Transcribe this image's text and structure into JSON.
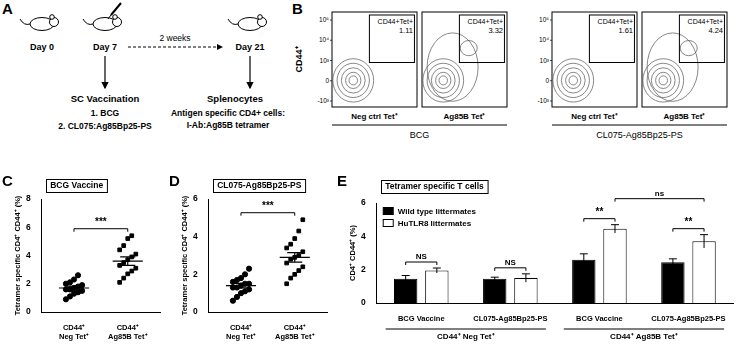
{
  "panel_a": {
    "label": "A",
    "days": [
      "Day 0",
      "Day 7",
      "Day 21"
    ],
    "interval": "2 weeks",
    "vaccination": {
      "title": "SC Vaccination",
      "items": [
        "1. BCG",
        "2. CL075:Ag85Bp25-PS"
      ]
    },
    "readout": {
      "title": "Splenocytes",
      "lines": [
        "Antigen specific CD4+ cells:",
        "I-Ab:Ag85B tetramer"
      ]
    }
  },
  "panel_b": {
    "label": "B",
    "y_label": "CD44⁺",
    "y_tick_labels": [
      "10⁵",
      "10⁴",
      "10³",
      "0",
      "-10³"
    ],
    "gate_label": "CD44+Tet+",
    "groups": [
      {
        "name": "BCG",
        "plots": [
          {
            "x_label": "Neg ctrl Tet⁺",
            "gate_value": 1.11
          },
          {
            "x_label": "Ag85B Tet⁺",
            "gate_value": 3.32
          }
        ]
      },
      {
        "name": "CL075-Ag85Bp25-PS",
        "plots": [
          {
            "x_label": "Neg ctrl Tet⁺",
            "gate_value": 1.61
          },
          {
            "x_label": "Ag85B Tet⁺",
            "gate_value": 4.24
          }
        ]
      }
    ]
  },
  "chart_data": [
    {
      "panel": "C",
      "type": "scatter",
      "title": "BCG Vaccine",
      "categories": [
        "CD44⁺\nNeg Tet⁺",
        "CD44⁺\nAg85B Tet⁺"
      ],
      "y_label": "Tetramer specific CD4⁺ CD44⁺ (%)",
      "ylim": [
        0,
        8
      ],
      "yticks": [
        0,
        2,
        4,
        6,
        8
      ],
      "grid": false,
      "color": "#000000",
      "groups": [
        {
          "marker": "circle",
          "values": [
            0.9,
            1.1,
            1.3,
            1.4,
            1.5,
            1.6,
            1.6,
            1.7,
            1.8,
            1.9,
            2.0,
            2.1,
            2.3,
            2.6
          ],
          "mean": 1.7,
          "sem": 0.13
        },
        {
          "marker": "square",
          "values": [
            2.1,
            2.4,
            2.7,
            2.9,
            3.1,
            3.3,
            3.5,
            3.7,
            3.9,
            4.1,
            4.4,
            4.7,
            5.2,
            5.4
          ],
          "mean": 3.6,
          "sem": 0.3
        }
      ],
      "annotations": [
        {
          "text": "***",
          "between": [
            0,
            1
          ]
        }
      ]
    },
    {
      "panel": "D",
      "type": "scatter",
      "title": "CL075-Ag85Bp25-PS",
      "categories": [
        "CD44⁺\nNeg Tet⁺",
        "CD44⁺\nAg85B Tet⁺"
      ],
      "y_label": "Tetramer specific CD4⁺ CD44⁺ (%)",
      "ylim": [
        0,
        6
      ],
      "yticks": [
        0,
        2,
        4,
        6
      ],
      "grid": false,
      "color": "#000000",
      "groups": [
        {
          "marker": "circle",
          "values": [
            0.6,
            0.8,
            1.0,
            1.1,
            1.2,
            1.3,
            1.3,
            1.4,
            1.5,
            1.5,
            1.6,
            1.7,
            1.8,
            2.0,
            2.3
          ],
          "mean": 1.4,
          "sem": 0.12
        },
        {
          "marker": "square",
          "values": [
            1.5,
            1.8,
            2.0,
            2.2,
            2.4,
            2.6,
            2.8,
            2.9,
            3.0,
            3.2,
            3.4,
            3.6,
            3.9,
            4.3,
            4.9
          ],
          "mean": 2.9,
          "sem": 0.25
        }
      ],
      "annotations": [
        {
          "text": "***",
          "between": [
            0,
            1
          ]
        }
      ]
    },
    {
      "panel": "E",
      "type": "bar",
      "title": "Tetramer specific T cells",
      "categories": [
        "BCG Vaccine",
        "CL075-Ag85Bp25-PS",
        "BCG Vaccine",
        "CL075-Ag85Bp25-PS"
      ],
      "category_groups": [
        {
          "label": "CD44⁺ Neg Tet⁺",
          "categories": [
            0,
            1
          ]
        },
        {
          "label": "CD44⁺ Ag85B Tet⁺",
          "categories": [
            2,
            3
          ]
        }
      ],
      "y_label": "CD4⁺ CD44⁺ (%)",
      "ylim": [
        0,
        6
      ],
      "yticks": [
        0,
        2,
        4,
        6
      ],
      "grid": false,
      "legend": "top-left",
      "series": [
        {
          "name": "Wild type littermates",
          "color": "#000000",
          "values": [
            1.45,
            1.45,
            2.6,
            2.45
          ],
          "errors": [
            0.2,
            0.1,
            0.35,
            0.2
          ]
        },
        {
          "name": "HuTLR8 littermates",
          "color": "#ffffff",
          "values": [
            1.95,
            1.5,
            4.45,
            3.7
          ],
          "errors": [
            0.15,
            0.25,
            0.25,
            0.4
          ]
        }
      ],
      "annotations": [
        {
          "text": "NS",
          "category": 0
        },
        {
          "text": "NS",
          "category": 1
        },
        {
          "text": "**",
          "category": 2
        },
        {
          "text": "**",
          "category": 3
        },
        {
          "text": "ns",
          "series": 1,
          "between": [
            2,
            3
          ]
        }
      ]
    }
  ]
}
